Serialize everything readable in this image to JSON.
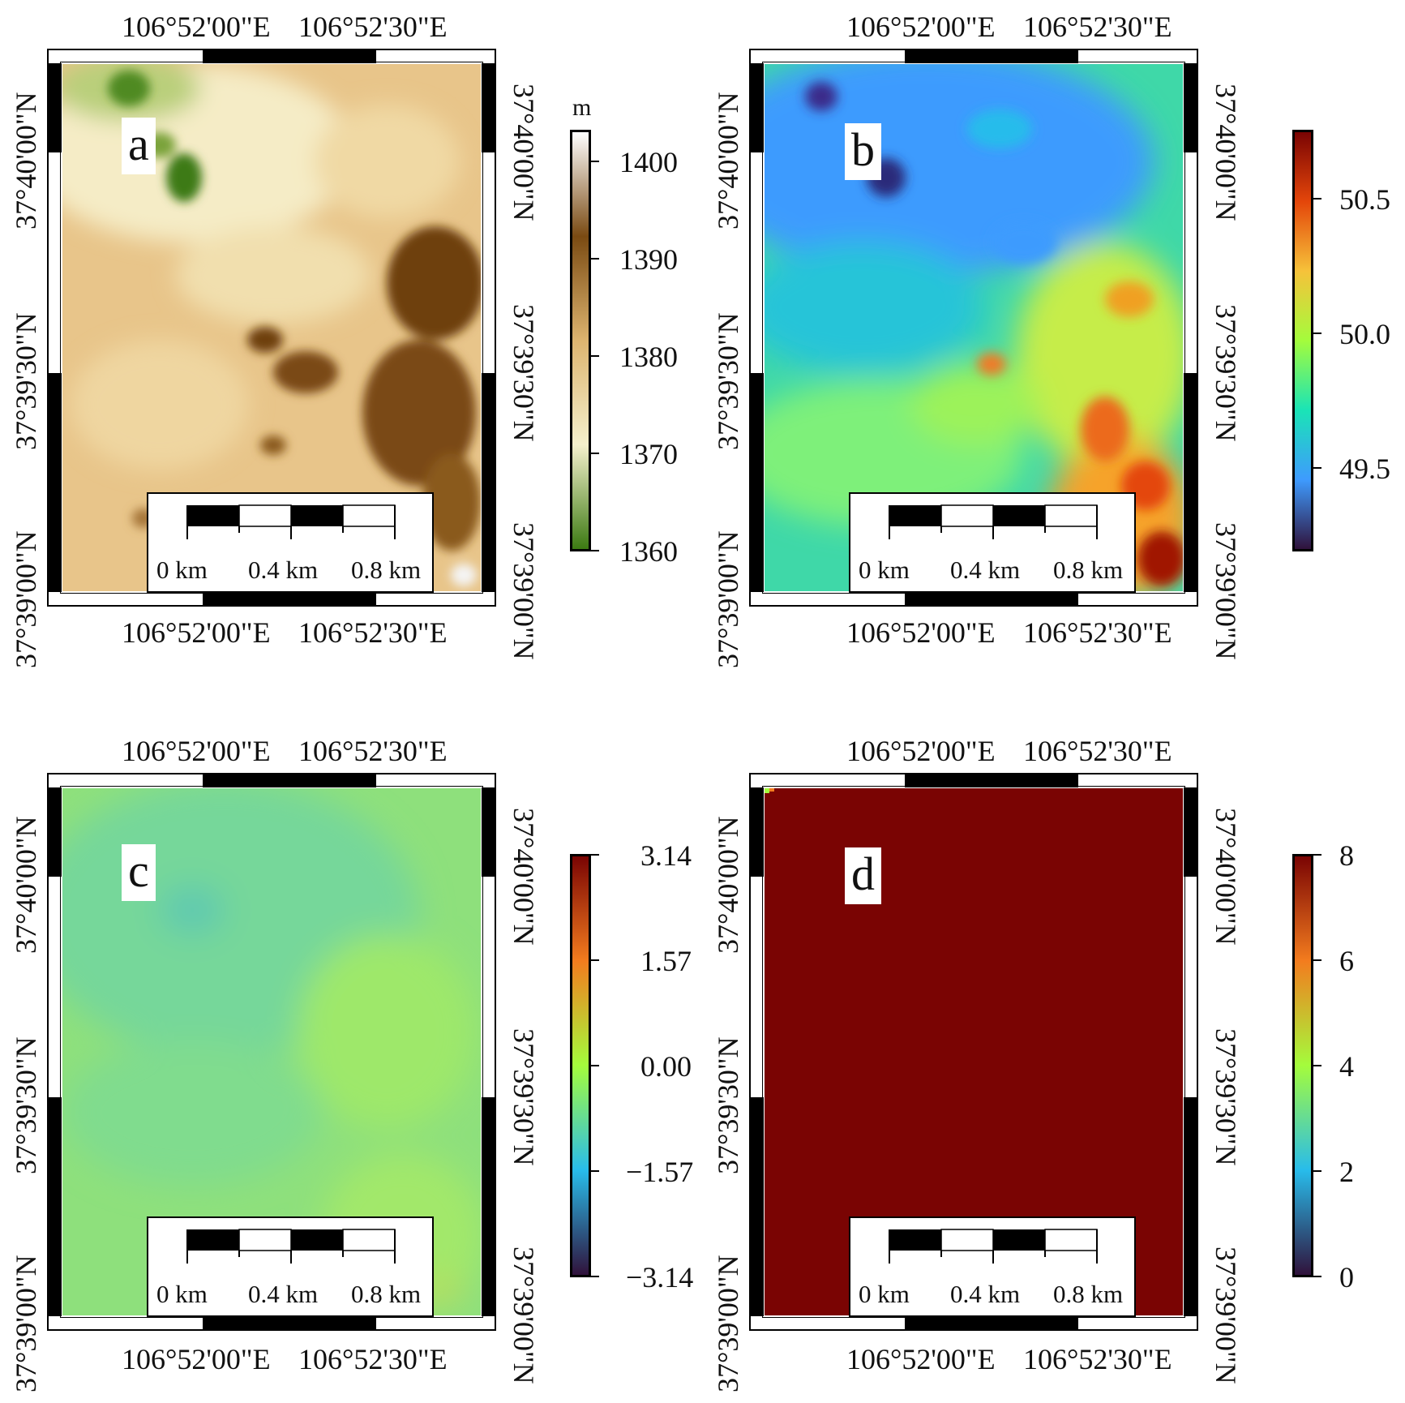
{
  "figure": {
    "panels": [
      {
        "id": "a",
        "label": "a",
        "x_ticks": [
          "106°52'00\"E",
          "106°52'30\"E"
        ],
        "y_ticks": [
          "37°40'00\"N",
          "37°39'30\"N",
          "37°39'00\"N"
        ],
        "scale_labels": [
          "0 km",
          "0.4 km",
          "0.8 km"
        ]
      },
      {
        "id": "b",
        "label": "b",
        "x_ticks": [
          "106°52'00\"E",
          "106°52'30\"E"
        ],
        "y_ticks": [
          "37°40'00\"N",
          "37°39'30\"N",
          "37°39'00\"N"
        ],
        "scale_labels": [
          "0 km",
          "0.4 km",
          "0.8 km"
        ]
      },
      {
        "id": "c",
        "label": "c",
        "x_ticks": [
          "106°52'00\"E",
          "106°52'30\"E"
        ],
        "y_ticks": [
          "37°40'00\"N",
          "37°39'30\"N",
          "37°39'00\"N"
        ],
        "scale_labels": [
          "0 km",
          "0.4 km",
          "0.8 km"
        ]
      },
      {
        "id": "d",
        "label": "d",
        "x_ticks": [
          "106°52'00\"E",
          "106°52'30\"E"
        ],
        "y_ticks": [
          "37°40'00\"N",
          "37°39'30\"N",
          "37°39'00\"N"
        ],
        "scale_labels": [
          "0 km",
          "0.4 km",
          "0.8 km"
        ]
      }
    ],
    "colorbars": [
      {
        "panel": "a",
        "unit": "m",
        "ticks": [
          "1400",
          "1390",
          "1380",
          "1370",
          "1360"
        ],
        "colors": [
          "#ffffff",
          "#7a4a12",
          "#ddb46f",
          "#f4f0cc",
          "#3c7a12"
        ]
      },
      {
        "panel": "b",
        "unit": "",
        "ticks": [
          "50.5",
          "50.0",
          "49.5"
        ],
        "colors": [
          "#7a0403",
          "#e4460a",
          "#f6c23a",
          "#a4fc3c",
          "#1ae4b6",
          "#3e9bfe",
          "#30123b"
        ]
      },
      {
        "panel": "c",
        "unit": "",
        "ticks": [
          "3.14",
          "1.57",
          "0.00",
          "−1.57",
          "−3.14"
        ],
        "colors": [
          "#7a0403",
          "#f37c1e",
          "#a4fc3c",
          "#28bceb",
          "#30123b"
        ]
      },
      {
        "panel": "d",
        "unit": "",
        "ticks": [
          "8",
          "6",
          "4",
          "2",
          "0"
        ],
        "colors": [
          "#7a0403",
          "#f37c1e",
          "#a4fc3c",
          "#28bceb",
          "#30123b"
        ]
      }
    ]
  }
}
